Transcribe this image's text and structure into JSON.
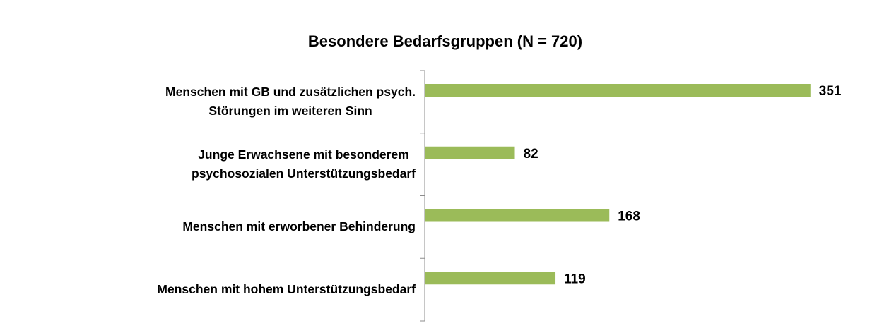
{
  "chart_data": {
    "type": "bar",
    "orientation": "horizontal",
    "title": "Besondere Bedarfsgruppen (N = 720)",
    "categories": [
      "Menschen mit GB und zusätzlichen psych.\nStörungen im weiteren Sinn",
      "Junge Erwachsene mit besonderem\npsychosozialen Unterstützungsbedarf",
      "Menschen mit erworbener Behinderung",
      "Menschen mit hohem Unterstützungsbedarf"
    ],
    "values": [
      351,
      82,
      168,
      119
    ],
    "color": "#9bbb59",
    "xlim": [
      0,
      400
    ]
  }
}
